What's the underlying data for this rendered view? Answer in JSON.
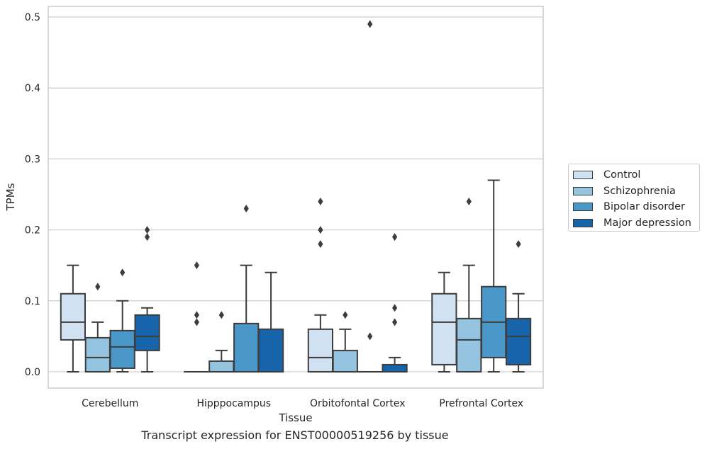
{
  "caption": "Transcript expression for ENST00000519256 by tissue",
  "chart_data": {
    "type": "box",
    "title": "",
    "xlabel": "Tissue",
    "ylabel": "TPMs",
    "ylim": [
      -0.023,
      0.515
    ],
    "yticks": [
      "0.0",
      "0.1",
      "0.2",
      "0.3",
      "0.4",
      "0.5"
    ],
    "grid": "horizontal",
    "legend_position": "right",
    "categories": [
      "Cerebellum",
      "Hipppocampus",
      "Orbitofontal Cortex",
      "Prefrontal Cortex"
    ],
    "series": [
      {
        "name": "Control",
        "color": "#d0e1f2",
        "boxes": [
          {
            "min": 0.0,
            "q1": 0.045,
            "median": 0.07,
            "q3": 0.11,
            "max": 0.15,
            "outliers": []
          },
          {
            "min": 0.0,
            "q1": 0.0,
            "median": 0.0,
            "q3": 0.0,
            "max": 0.0,
            "outliers": [
              0.07,
              0.08,
              0.15
            ]
          },
          {
            "min": 0.0,
            "q1": 0.0,
            "median": 0.02,
            "q3": 0.06,
            "max": 0.08,
            "outliers": [
              0.18,
              0.2,
              0.24
            ]
          },
          {
            "min": 0.0,
            "q1": 0.01,
            "median": 0.07,
            "q3": 0.11,
            "max": 0.14,
            "outliers": []
          }
        ]
      },
      {
        "name": "Schizophrenia",
        "color": "#94c4df",
        "boxes": [
          {
            "min": 0.0,
            "q1": 0.0,
            "median": 0.02,
            "q3": 0.048,
            "max": 0.07,
            "outliers": [
              0.12
            ]
          },
          {
            "min": 0.0,
            "q1": 0.0,
            "median": 0.0,
            "q3": 0.015,
            "max": 0.03,
            "outliers": [
              0.08
            ]
          },
          {
            "min": 0.0,
            "q1": 0.0,
            "median": 0.0,
            "q3": 0.03,
            "max": 0.06,
            "outliers": [
              0.08
            ]
          },
          {
            "min": 0.0,
            "q1": 0.0,
            "median": 0.045,
            "q3": 0.075,
            "max": 0.15,
            "outliers": [
              0.24
            ]
          }
        ]
      },
      {
        "name": "Bipolar disorder",
        "color": "#4a98c9",
        "boxes": [
          {
            "min": 0.0,
            "q1": 0.005,
            "median": 0.035,
            "q3": 0.058,
            "max": 0.1,
            "outliers": [
              0.14
            ]
          },
          {
            "min": 0.0,
            "q1": 0.0,
            "median": 0.0,
            "q3": 0.068,
            "max": 0.15,
            "outliers": [
              0.23
            ]
          },
          {
            "min": 0.0,
            "q1": 0.0,
            "median": 0.0,
            "q3": 0.0,
            "max": 0.0,
            "outliers": [
              0.05,
              0.49
            ]
          },
          {
            "min": 0.0,
            "q1": 0.02,
            "median": 0.07,
            "q3": 0.12,
            "max": 0.27,
            "outliers": []
          }
        ]
      },
      {
        "name": "Major depression",
        "color": "#1764ab",
        "boxes": [
          {
            "min": 0.0,
            "q1": 0.03,
            "median": 0.05,
            "q3": 0.08,
            "max": 0.09,
            "outliers": [
              0.19,
              0.2
            ]
          },
          {
            "min": 0.0,
            "q1": 0.0,
            "median": 0.0,
            "q3": 0.06,
            "max": 0.14,
            "outliers": []
          },
          {
            "min": 0.0,
            "q1": 0.0,
            "median": 0.0,
            "q3": 0.01,
            "max": 0.02,
            "outliers": [
              0.07,
              0.09,
              0.19
            ]
          },
          {
            "min": 0.0,
            "q1": 0.01,
            "median": 0.05,
            "q3": 0.075,
            "max": 0.11,
            "outliers": [
              0.18
            ]
          }
        ]
      }
    ]
  }
}
